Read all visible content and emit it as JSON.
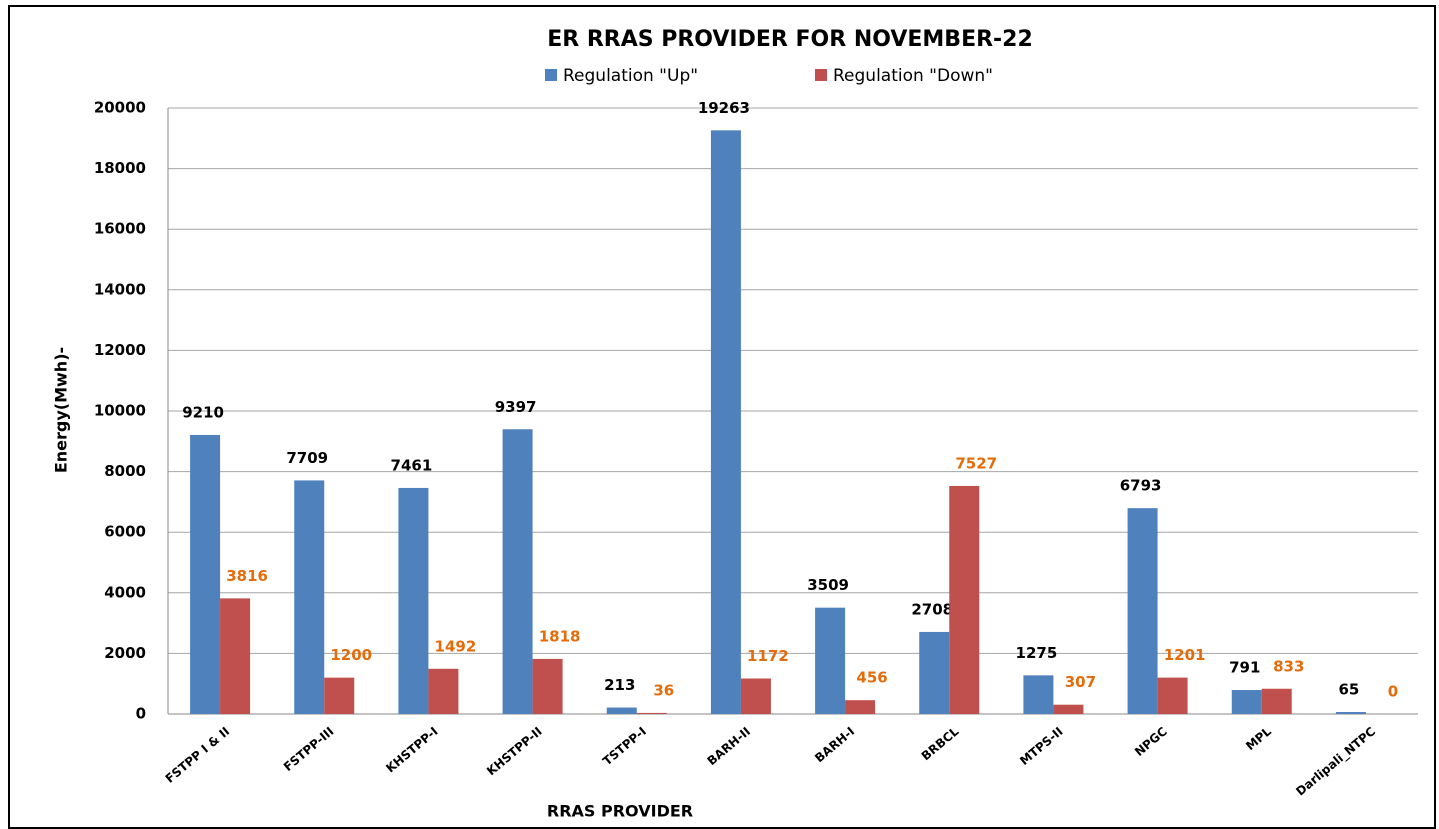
{
  "chart_data": {
    "type": "bar",
    "title": "ER RRAS PROVIDER FOR NOVEMBER-22",
    "x_label": "RRAS PROVIDER",
    "y_label": "Energy(Mwh)-",
    "categories": [
      "FSTPP I & II",
      "FSTPP-III",
      "KHSTPP-I",
      "KHSTPP-II",
      "TSTPP-I",
      "BARH-II",
      "BARH-I",
      "BRBCL",
      "MTPS-II",
      "NPGC",
      "MPL",
      "Darlipali_NTPC"
    ],
    "series": [
      {
        "name": "Regulation \"Up\"",
        "color": "#4f81bd",
        "label_color": "#000000",
        "values": [
          9210,
          7709,
          7461,
          9397,
          213,
          19263,
          3509,
          2708,
          1275,
          6793,
          791,
          65
        ]
      },
      {
        "name": "Regulation \"Down\"",
        "color": "#c0504d",
        "label_color": "#e46c0a",
        "values": [
          3816,
          1200,
          1492,
          1818,
          36,
          1172,
          456,
          7527,
          307,
          1201,
          833,
          0
        ]
      }
    ],
    "ylim": [
      0,
      20000
    ],
    "yticks": [
      0,
      2000,
      4000,
      6000,
      8000,
      10000,
      12000,
      14000,
      16000,
      18000,
      20000
    ],
    "grid": true,
    "legend": "top"
  }
}
